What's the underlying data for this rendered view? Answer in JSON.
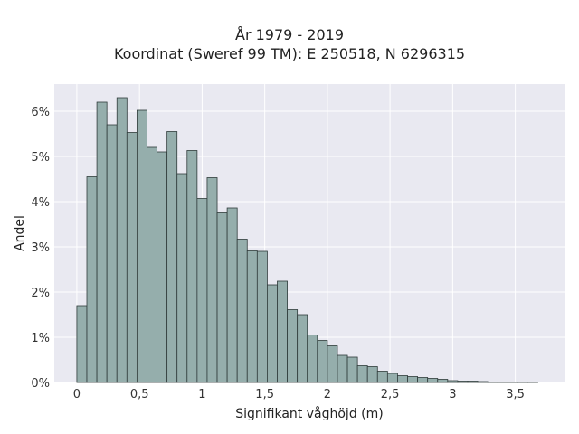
{
  "chart_data": {
    "type": "bar",
    "title": "År 1979 - 2019",
    "subtitle": "Koordinat (Sweref 99 TM): E 250518, N 6296315",
    "xlabel": "Signifikant våghöjd (m)",
    "ylabel": "Andel",
    "bin_width": 0.08,
    "bin_start": 0.0,
    "xlim": [
      -0.18,
      3.9
    ],
    "ylim": [
      0,
      0.066
    ],
    "x_ticks": [
      0,
      0.5,
      1,
      1.5,
      2,
      2.5,
      3,
      3.5
    ],
    "x_tick_labels": [
      "0",
      "0,5",
      "1",
      "1,5",
      "2",
      "2,5",
      "3",
      "3,5"
    ],
    "y_ticks": [
      0,
      0.01,
      0.02,
      0.03,
      0.04,
      0.05,
      0.06
    ],
    "y_tick_labels": [
      "0%",
      "1%",
      "2%",
      "3%",
      "4%",
      "5%",
      "6%"
    ],
    "values": [
      0.017,
      0.0455,
      0.062,
      0.057,
      0.063,
      0.0553,
      0.0602,
      0.052,
      0.051,
      0.0555,
      0.0462,
      0.0513,
      0.0407,
      0.0453,
      0.0375,
      0.0386,
      0.0317,
      0.0291,
      0.029,
      0.0216,
      0.0224,
      0.0161,
      0.015,
      0.0105,
      0.0093,
      0.0081,
      0.006,
      0.0056,
      0.0037,
      0.0035,
      0.0025,
      0.002,
      0.0015,
      0.0013,
      0.0011,
      0.0009,
      0.0007,
      0.0004,
      0.0003,
      0.0003,
      0.0002,
      0.0001,
      0.0001,
      0.0001,
      0.0001,
      0.0001
    ],
    "grid": true,
    "colors": {
      "bar_fill": "#95aeac",
      "bar_edge": "#2f3b3a",
      "plot_background": "#e9e9f1",
      "grid": "#ffffff"
    }
  }
}
